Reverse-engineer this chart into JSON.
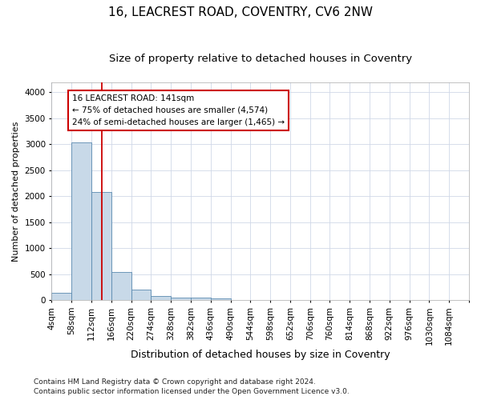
{
  "title": "16, LEACREST ROAD, COVENTRY, CV6 2NW",
  "subtitle": "Size of property relative to detached houses in Coventry",
  "xlabel": "Distribution of detached houses by size in Coventry",
  "ylabel": "Number of detached properties",
  "footnote1": "Contains HM Land Registry data © Crown copyright and database right 2024.",
  "footnote2": "Contains public sector information licensed under the Open Government Licence v3.0.",
  "bin_labels": [
    "4sqm",
    "58sqm",
    "112sqm",
    "166sqm",
    "220sqm",
    "274sqm",
    "328sqm",
    "382sqm",
    "436sqm",
    "490sqm",
    "544sqm",
    "598sqm",
    "652sqm",
    "706sqm",
    "760sqm",
    "814sqm",
    "868sqm",
    "922sqm",
    "976sqm",
    "1030sqm",
    "1084sqm"
  ],
  "bin_edges": [
    4,
    58,
    112,
    166,
    220,
    274,
    328,
    382,
    436,
    490,
    544,
    598,
    652,
    706,
    760,
    814,
    868,
    922,
    976,
    1030,
    1084
  ],
  "bin_width": 54,
  "bar_values": [
    140,
    3040,
    2080,
    540,
    210,
    80,
    55,
    45,
    40,
    0,
    0,
    0,
    0,
    0,
    0,
    0,
    0,
    0,
    0,
    0
  ],
  "bar_color": "#c8d9e8",
  "bar_edge_color": "#5a8ab0",
  "grid_color": "#d0d8e8",
  "vline_x": 141,
  "vline_color": "#cc0000",
  "annotation_line1": "16 LEACREST ROAD: 141sqm",
  "annotation_line2": "← 75% of detached houses are smaller (4,574)",
  "annotation_line3": "24% of semi-detached houses are larger (1,465) →",
  "annotation_box_color": "#cc0000",
  "ylim": [
    0,
    4200
  ],
  "yticks": [
    0,
    500,
    1000,
    1500,
    2000,
    2500,
    3000,
    3500,
    4000
  ],
  "title_fontsize": 11,
  "subtitle_fontsize": 9.5,
  "xlabel_fontsize": 9,
  "ylabel_fontsize": 8,
  "tick_fontsize": 7.5,
  "annot_fontsize": 7.5,
  "footnote_fontsize": 6.5
}
